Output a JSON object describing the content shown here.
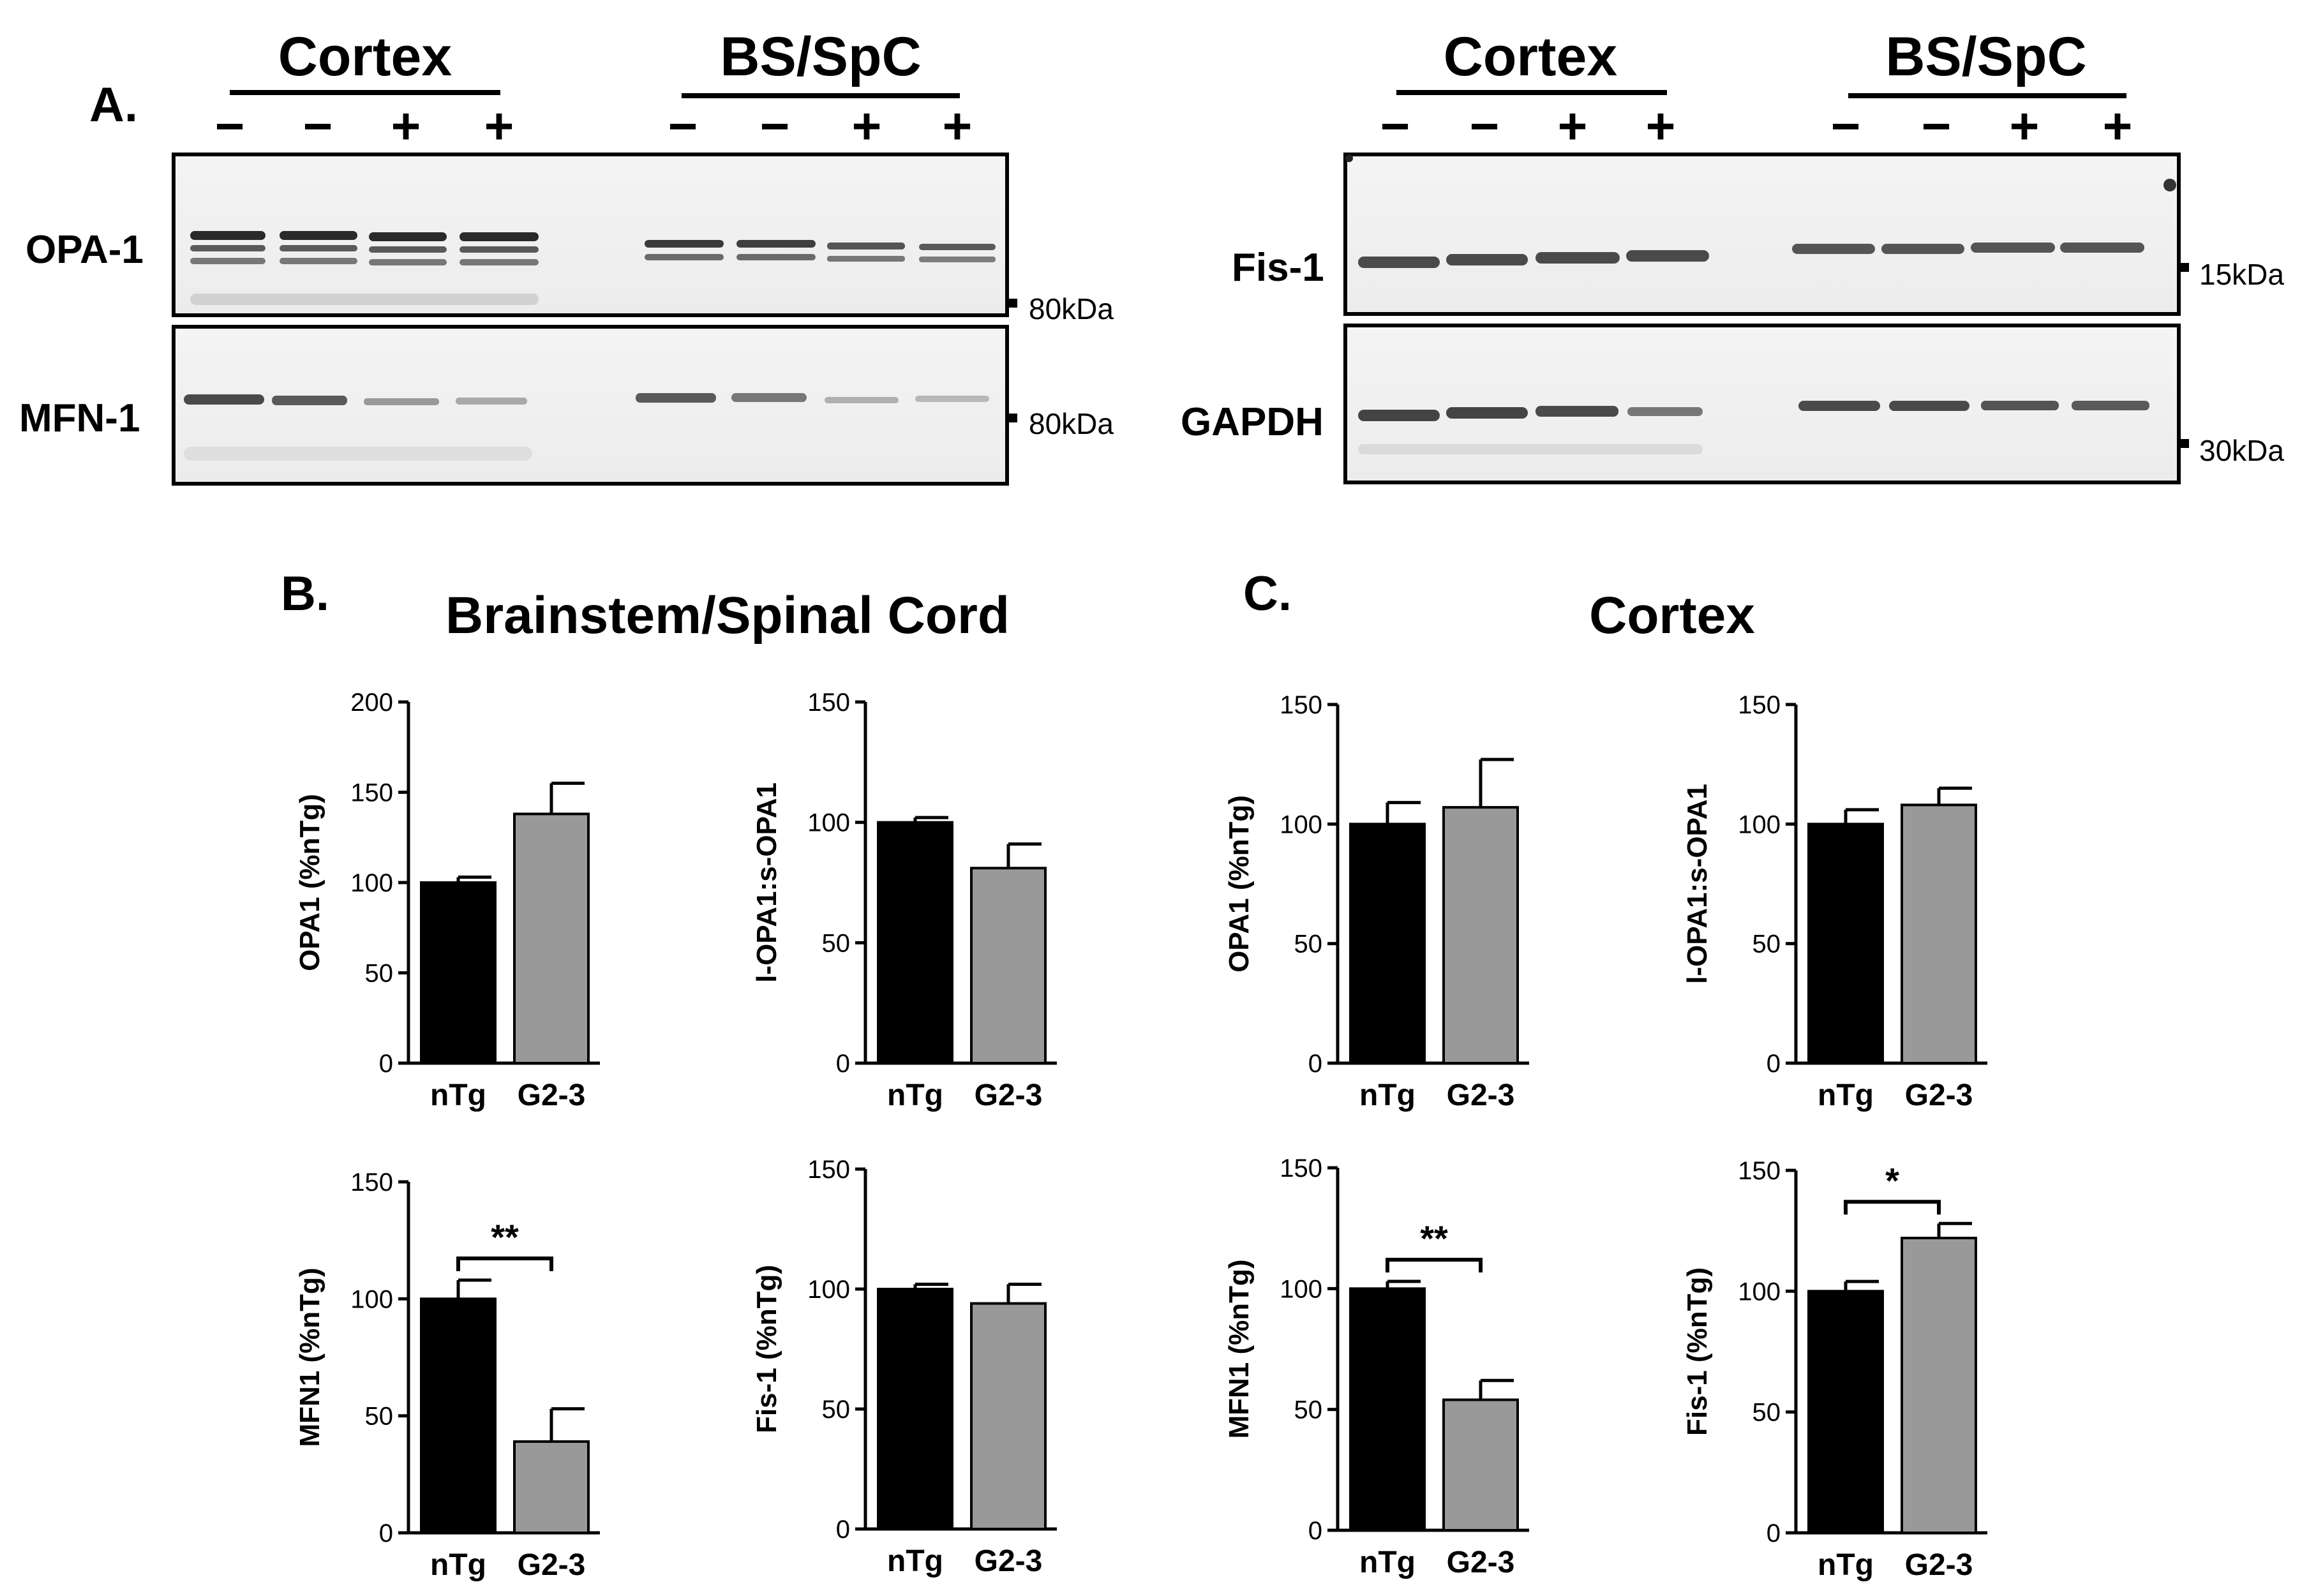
{
  "panel_a": {
    "letter": "A.",
    "left_blot": {
      "groups": [
        {
          "label": "Cortex",
          "lanes": [
            "−",
            "−",
            "+",
            "+"
          ]
        },
        {
          "label": "BS/SpC",
          "lanes": [
            "−",
            "−",
            "+",
            "+"
          ]
        }
      ],
      "rows": [
        {
          "protein": "OPA-1",
          "marker": "80kDa"
        },
        {
          "protein": "MFN-1",
          "marker": "80kDa"
        }
      ]
    },
    "right_blot": {
      "groups": [
        {
          "label": "Cortex",
          "lanes": [
            "−",
            "−",
            "+",
            "+"
          ]
        },
        {
          "label": "BS/SpC",
          "lanes": [
            "−",
            "−",
            "+",
            "+"
          ]
        }
      ],
      "rows": [
        {
          "protein": "Fis-1",
          "marker": "15kDa"
        },
        {
          "protein": "GAPDH",
          "marker": "30kDa"
        }
      ]
    }
  },
  "panel_b": {
    "letter": "B.",
    "title": "Brainstem/Spinal Cord"
  },
  "panel_c": {
    "letter": "C.",
    "title": "Cortex"
  },
  "chart_data": [
    {
      "id": "b1",
      "type": "bar",
      "panel": "B",
      "categories": [
        "nTg",
        "G2-3"
      ],
      "values": [
        100,
        138
      ],
      "errors": [
        3,
        17
      ],
      "ylabel": "OPA1 (%nTg)",
      "ylim": [
        0,
        200
      ],
      "yticks": [
        0,
        50,
        100,
        150,
        200
      ],
      "significance": "",
      "colors": [
        "#000000",
        "#999999"
      ]
    },
    {
      "id": "b2",
      "type": "bar",
      "panel": "B",
      "categories": [
        "nTg",
        "G2-3"
      ],
      "values": [
        100,
        81
      ],
      "errors": [
        2,
        10
      ],
      "ylabel": "l-OPA1:s-OPA1",
      "ylim": [
        0,
        150
      ],
      "yticks": [
        0,
        50,
        100,
        150
      ],
      "significance": "",
      "colors": [
        "#000000",
        "#999999"
      ]
    },
    {
      "id": "b3",
      "type": "bar",
      "panel": "B",
      "categories": [
        "nTg",
        "G2-3"
      ],
      "values": [
        100,
        39
      ],
      "errors": [
        8,
        14
      ],
      "ylabel": "MFN1 (%nTg)",
      "ylim": [
        0,
        150
      ],
      "yticks": [
        0,
        50,
        100,
        150
      ],
      "significance": "**",
      "colors": [
        "#000000",
        "#999999"
      ]
    },
    {
      "id": "b4",
      "type": "bar",
      "panel": "B",
      "categories": [
        "nTg",
        "G2-3"
      ],
      "values": [
        100,
        94
      ],
      "errors": [
        2,
        8
      ],
      "ylabel": "Fis-1 (%nTg)",
      "ylim": [
        0,
        150
      ],
      "yticks": [
        0,
        50,
        100,
        150
      ],
      "significance": "",
      "colors": [
        "#000000",
        "#999999"
      ]
    },
    {
      "id": "c1",
      "type": "bar",
      "panel": "C",
      "categories": [
        "nTg",
        "G2-3"
      ],
      "values": [
        100,
        107
      ],
      "errors": [
        9,
        20
      ],
      "ylabel": "OPA1 (%nTg)",
      "ylim": [
        0,
        150
      ],
      "yticks": [
        0,
        50,
        100,
        150
      ],
      "significance": "",
      "colors": [
        "#000000",
        "#999999"
      ]
    },
    {
      "id": "c2",
      "type": "bar",
      "panel": "C",
      "categories": [
        "nTg",
        "G2-3"
      ],
      "values": [
        100,
        108
      ],
      "errors": [
        6,
        7
      ],
      "ylabel": "l-OPA1:s-OPA1",
      "ylim": [
        0,
        150
      ],
      "yticks": [
        0,
        50,
        100,
        150
      ],
      "significance": "",
      "colors": [
        "#000000",
        "#999999"
      ]
    },
    {
      "id": "c3",
      "type": "bar",
      "panel": "C",
      "categories": [
        "nTg",
        "G2-3"
      ],
      "values": [
        100,
        54
      ],
      "errors": [
        3,
        8
      ],
      "ylabel": "MFN1 (%nTg)",
      "ylim": [
        0,
        150
      ],
      "yticks": [
        0,
        50,
        100,
        150
      ],
      "significance": "**",
      "colors": [
        "#000000",
        "#999999"
      ]
    },
    {
      "id": "c4",
      "type": "bar",
      "panel": "C",
      "categories": [
        "nTg",
        "G2-3"
      ],
      "values": [
        100,
        122
      ],
      "errors": [
        4,
        6
      ],
      "ylabel": "Fis-1 (%nTg)",
      "ylim": [
        0,
        150
      ],
      "yticks": [
        0,
        50,
        100,
        150
      ],
      "significance": "*",
      "colors": [
        "#000000",
        "#999999"
      ]
    }
  ]
}
